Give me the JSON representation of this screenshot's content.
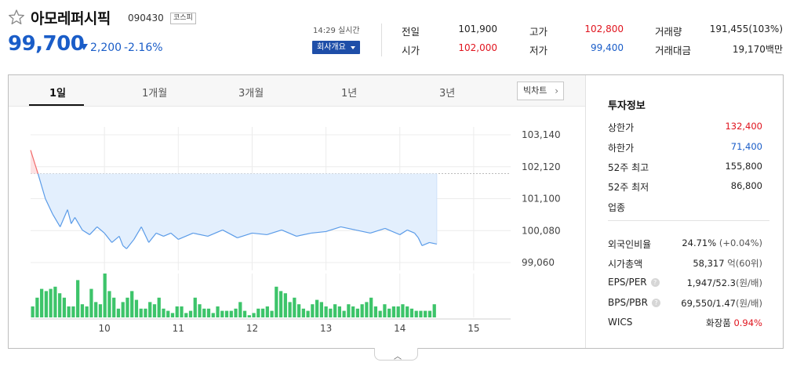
{
  "stock": {
    "name": "아모레퍼시픽",
    "code": "090430",
    "market": "코스피",
    "price": "99,700",
    "change": "2,200",
    "change_rate": "-2.16%",
    "time": "14:29 실시간",
    "company_btn": "회사개요"
  },
  "quote": {
    "prev_label": "전일",
    "prev_value": "101,900",
    "open_label": "시가",
    "open_value": "102,000",
    "high_label": "고가",
    "high_value": "102,800",
    "low_label": "저가",
    "low_value": "99,400",
    "volume_label": "거래량",
    "volume_value": "191,455(103%)",
    "amount_label": "거래대금",
    "amount_value": "19,170백만"
  },
  "tabs": [
    "1일",
    "1개월",
    "3개월",
    "1년",
    "3년"
  ],
  "big_chart_label": "빅차트",
  "invest": {
    "title": "투자정보",
    "upper_label": "상한가",
    "upper_value": "132,400",
    "lower_label": "하한가",
    "lower_value": "71,400",
    "high52_label": "52주 최고",
    "high52_value": "155,800",
    "low52_label": "52주 최저",
    "low52_value": "86,800",
    "industry_label": "업종",
    "foreign_label": "외국인비율",
    "foreign_value": "24.71%",
    "foreign_change": "(+0.04%)",
    "mktcap_label": "시가총액",
    "mktcap_value": "58,317",
    "mktcap_unit": "억(60위)",
    "eps_label": "EPS/PER",
    "eps_value": "1,947/52.3",
    "eps_unit": "(원/배)",
    "bps_label": "BPS/PBR",
    "bps_value": "69,550/1.47",
    "bps_unit": "(원/배)",
    "wics_label": "WICS",
    "wics_value": "화장품",
    "wics_change": "0.94%"
  },
  "colors": {
    "up": "#e0141e",
    "down": "#1a5dc8",
    "volume": "#3dc46a",
    "line": "#5a9be8",
    "fill": "#e3effd"
  },
  "chart_data": [
    {
      "type": "line",
      "title": "",
      "x_ticks": [
        "10",
        "11",
        "12",
        "13",
        "14",
        "15"
      ],
      "y_ticks": [
        "103,140",
        "102,120",
        "101,100",
        "100,080",
        "99,060"
      ],
      "ylim": [
        99060,
        103140
      ],
      "reference_value": 101900,
      "x_range": [
        9.0,
        15.5
      ],
      "series": [
        {
          "x": [
            9.0,
            9.1,
            9.2,
            9.3,
            9.4,
            9.5,
            9.55,
            9.6,
            9.7,
            9.8,
            9.9,
            10.0,
            10.1,
            10.2,
            10.25,
            10.3,
            10.4,
            10.5,
            10.6,
            10.7,
            10.8,
            10.9,
            11.0,
            11.2,
            11.4,
            11.6,
            11.8,
            12.0,
            12.2,
            12.4,
            12.6,
            12.8,
            13.0,
            13.2,
            13.4,
            13.6,
            13.8,
            14.0,
            14.1,
            14.2,
            14.25,
            14.3,
            14.4,
            14.5
          ],
          "y": [
            102650,
            101900,
            101100,
            100600,
            100200,
            100750,
            100300,
            100500,
            100100,
            99950,
            100200,
            100000,
            99700,
            99900,
            99600,
            99500,
            99800,
            100200,
            99700,
            100000,
            99900,
            100000,
            99800,
            100000,
            99900,
            100100,
            99850,
            100000,
            99950,
            100100,
            99900,
            100000,
            100050,
            100200,
            100100,
            100000,
            100150,
            99950,
            100100,
            100000,
            99850,
            99600,
            99700,
            99650
          ]
        }
      ]
    },
    {
      "type": "bar",
      "title": "",
      "x_range": [
        9.0,
        15.5
      ],
      "values": [
        5,
        9,
        13,
        12,
        13,
        14,
        11,
        9,
        5,
        5,
        17,
        6,
        5,
        13,
        7,
        6,
        20,
        12,
        9,
        4,
        7,
        9,
        12,
        8,
        4,
        4,
        7,
        6,
        9,
        4,
        3,
        2,
        5,
        5,
        2,
        3,
        9,
        6,
        4,
        4,
        2,
        5,
        3,
        3,
        3,
        4,
        7,
        3,
        1,
        2,
        4,
        4,
        5,
        3,
        14,
        12,
        11,
        7,
        9,
        6,
        4,
        3,
        6,
        8,
        7,
        5,
        4,
        6,
        5,
        3,
        6,
        5,
        4,
        6,
        7,
        9,
        5,
        3,
        6,
        4,
        5,
        5,
        6,
        5,
        4,
        3,
        3,
        3,
        3,
        6
      ]
    }
  ]
}
